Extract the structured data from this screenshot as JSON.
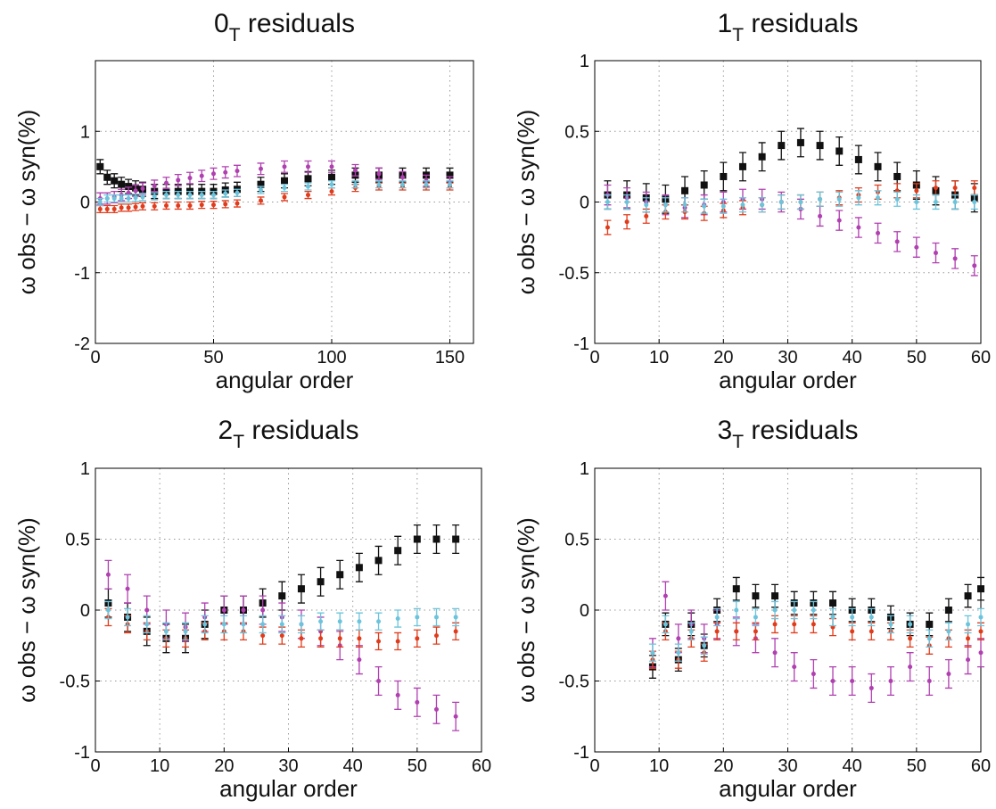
{
  "chart_data": [
    {
      "type": "scatter",
      "title": [
        "0",
        "T",
        " residuals"
      ],
      "xlabel": "angular order",
      "ylabel": "ω obs − ω syn(%)",
      "xlim": [
        0,
        160
      ],
      "xticks": [
        0,
        50,
        100,
        150
      ],
      "ylim": [
        -2,
        2
      ],
      "yticks": [
        -2,
        -1,
        0,
        1
      ],
      "grid": true,
      "x": [
        2,
        5,
        8,
        11,
        14,
        17,
        20,
        25,
        30,
        35,
        40,
        45,
        50,
        55,
        60,
        70,
        80,
        90,
        100,
        110,
        120,
        130,
        140,
        150
      ],
      "series": [
        {
          "color": "#111111",
          "error": 0.1,
          "values": [
            0.5,
            0.35,
            0.3,
            0.25,
            0.22,
            0.2,
            0.18,
            0.15,
            0.15,
            0.15,
            0.15,
            0.15,
            0.15,
            0.17,
            0.18,
            0.25,
            0.3,
            0.33,
            0.35,
            0.38,
            0.38,
            0.38,
            0.38,
            0.38
          ]
        },
        {
          "color": "#b040b0",
          "error": 0.08,
          "values": [
            0.05,
            0.05,
            0.07,
            0.1,
            0.13,
            0.16,
            0.19,
            0.23,
            0.27,
            0.31,
            0.34,
            0.37,
            0.4,
            0.42,
            0.44,
            0.47,
            0.5,
            0.5,
            0.5,
            0.45,
            0.4,
            0.35,
            0.3,
            0.28
          ]
        },
        {
          "color": "#e03c1c",
          "error": 0.05,
          "values": [
            -0.1,
            -0.1,
            -0.1,
            -0.08,
            -0.08,
            -0.07,
            -0.06,
            -0.06,
            -0.05,
            -0.05,
            -0.05,
            -0.04,
            -0.04,
            -0.03,
            -0.02,
            0.02,
            0.07,
            0.1,
            0.15,
            0.2,
            0.22,
            0.22,
            0.22,
            0.22
          ]
        },
        {
          "color": "#6cc4dc",
          "error": 0.05,
          "values": [
            0,
            0.05,
            0.05,
            0.05,
            0.05,
            0.06,
            0.07,
            0.08,
            0.1,
            0.1,
            0.1,
            0.1,
            0.1,
            0.12,
            0.13,
            0.17,
            0.2,
            0.22,
            0.25,
            0.25,
            0.25,
            0.25,
            0.25,
            0.25
          ]
        }
      ]
    },
    {
      "type": "scatter",
      "title": [
        "1",
        "T",
        " residuals"
      ],
      "xlabel": "angular order",
      "ylabel": "ω obs − ω syn(%)",
      "xlim": [
        0,
        60
      ],
      "xticks": [
        0,
        10,
        20,
        30,
        40,
        50,
        60
      ],
      "ylim": [
        -1,
        1
      ],
      "yticks": [
        -1,
        -0.5,
        0,
        0.5,
        1
      ],
      "grid": true,
      "x": [
        2,
        5,
        8,
        11,
        14,
        17,
        20,
        23,
        26,
        29,
        32,
        35,
        38,
        41,
        44,
        47,
        50,
        53,
        56,
        59
      ],
      "series": [
        {
          "color": "#111111",
          "error": 0.1,
          "values": [
            0.05,
            0.05,
            0.03,
            0.02,
            0.08,
            0.12,
            0.18,
            0.25,
            0.32,
            0.4,
            0.42,
            0.4,
            0.36,
            0.3,
            0.25,
            0.18,
            0.12,
            0.08,
            0.05,
            0.03
          ]
        },
        {
          "color": "#b040b0",
          "error": 0.07,
          "values": [
            0.05,
            0.03,
            0,
            -0.02,
            -0.04,
            -0.02,
            0,
            0.02,
            0.02,
            0,
            -0.05,
            -0.1,
            -0.13,
            -0.18,
            -0.22,
            -0.28,
            -0.32,
            -0.36,
            -0.4,
            -0.45
          ]
        },
        {
          "color": "#e03c1c",
          "error": 0.05,
          "values": [
            -0.18,
            -0.14,
            -0.1,
            -0.07,
            -0.07,
            -0.08,
            -0.06,
            -0.04,
            -0.02,
            0,
            0,
            0.02,
            0.03,
            0.05,
            0.07,
            0.08,
            0.08,
            0.1,
            0.1,
            0.1
          ]
        },
        {
          "color": "#6cc4dc",
          "error": 0.05,
          "values": [
            0,
            0,
            -0.02,
            -0.02,
            -0.02,
            -0.03,
            -0.03,
            -0.02,
            -0.02,
            0,
            0,
            0.02,
            0.02,
            0.03,
            0.03,
            0.02,
            0,
            0,
            0,
            0
          ]
        }
      ]
    },
    {
      "type": "scatter",
      "title": [
        "2",
        "T",
        " residuals"
      ],
      "xlabel": "angular order",
      "ylabel": "ω obs − ω syn(%)",
      "xlim": [
        0,
        60
      ],
      "xticks": [
        0,
        10,
        20,
        30,
        40,
        50,
        60
      ],
      "ylim": [
        -1,
        1
      ],
      "yticks": [
        -1,
        -0.5,
        0,
        0.5,
        1
      ],
      "grid": true,
      "x": [
        2,
        5,
        8,
        11,
        14,
        17,
        20,
        23,
        26,
        29,
        32,
        35,
        38,
        41,
        44,
        47,
        50,
        53,
        56
      ],
      "series": [
        {
          "color": "#111111",
          "error": 0.1,
          "values": [
            0.05,
            -0.05,
            -0.15,
            -0.2,
            -0.2,
            -0.1,
            0,
            0,
            0.05,
            0.1,
            0.15,
            0.2,
            0.25,
            0.3,
            0.35,
            0.42,
            0.5,
            0.5,
            0.5
          ]
        },
        {
          "color": "#b040b0",
          "error": 0.1,
          "values": [
            0.25,
            0.15,
            0,
            -0.1,
            -0.12,
            -0.05,
            0,
            0,
            0,
            -0.05,
            -0.1,
            -0.15,
            -0.25,
            -0.35,
            -0.5,
            -0.6,
            -0.65,
            -0.7,
            -0.75
          ]
        },
        {
          "color": "#e03c1c",
          "error": 0.06,
          "values": [
            -0.05,
            -0.1,
            -0.15,
            -0.2,
            -0.2,
            -0.15,
            -0.15,
            -0.15,
            -0.18,
            -0.18,
            -0.2,
            -0.2,
            -0.2,
            -0.2,
            -0.22,
            -0.22,
            -0.2,
            -0.18,
            -0.15
          ]
        },
        {
          "color": "#6cc4dc",
          "error": 0.06,
          "values": [
            0,
            -0.05,
            -0.1,
            -0.15,
            -0.15,
            -0.1,
            -0.1,
            -0.1,
            -0.1,
            -0.1,
            -0.1,
            -0.08,
            -0.08,
            -0.08,
            -0.08,
            -0.06,
            -0.05,
            -0.05,
            -0.05
          ]
        }
      ]
    },
    {
      "type": "scatter",
      "title": [
        "3",
        "T",
        " residuals"
      ],
      "xlabel": "angular order",
      "ylabel": "ω obs − ω syn(%)",
      "xlim": [
        0,
        60
      ],
      "xticks": [
        0,
        10,
        20,
        30,
        40,
        50,
        60
      ],
      "ylim": [
        -1,
        1
      ],
      "yticks": [
        -1,
        -0.5,
        0,
        0.5,
        1
      ],
      "grid": true,
      "x": [
        9,
        11,
        13,
        15,
        17,
        19,
        22,
        25,
        28,
        31,
        34,
        37,
        40,
        43,
        46,
        49,
        52,
        55,
        58,
        60
      ],
      "series": [
        {
          "color": "#111111",
          "error": 0.08,
          "values": [
            -0.4,
            -0.1,
            -0.35,
            -0.1,
            -0.25,
            0,
            0.15,
            0.1,
            0.1,
            0.05,
            0.05,
            0.05,
            0,
            0,
            -0.05,
            -0.1,
            -0.1,
            0,
            0.1,
            0.15
          ]
        },
        {
          "color": "#b040b0",
          "error": 0.1,
          "values": [
            -0.3,
            0.1,
            -0.2,
            -0.1,
            -0.2,
            -0.1,
            -0.15,
            -0.2,
            -0.3,
            -0.4,
            -0.45,
            -0.5,
            -0.5,
            -0.55,
            -0.5,
            -0.4,
            -0.5,
            -0.45,
            -0.35,
            -0.3
          ]
        },
        {
          "color": "#e03c1c",
          "error": 0.06,
          "values": [
            -0.35,
            -0.15,
            -0.35,
            -0.2,
            -0.3,
            -0.15,
            -0.15,
            -0.15,
            -0.1,
            -0.1,
            -0.1,
            -0.12,
            -0.15,
            -0.15,
            -0.15,
            -0.2,
            -0.25,
            -0.2,
            -0.2,
            -0.15
          ]
        },
        {
          "color": "#6cc4dc",
          "error": 0.06,
          "values": [
            -0.3,
            -0.1,
            -0.3,
            -0.15,
            -0.25,
            -0.05,
            0,
            -0.05,
            0,
            0,
            0,
            -0.05,
            -0.05,
            -0.05,
            -0.1,
            -0.1,
            -0.2,
            -0.15,
            -0.1,
            -0.05
          ]
        }
      ]
    }
  ]
}
